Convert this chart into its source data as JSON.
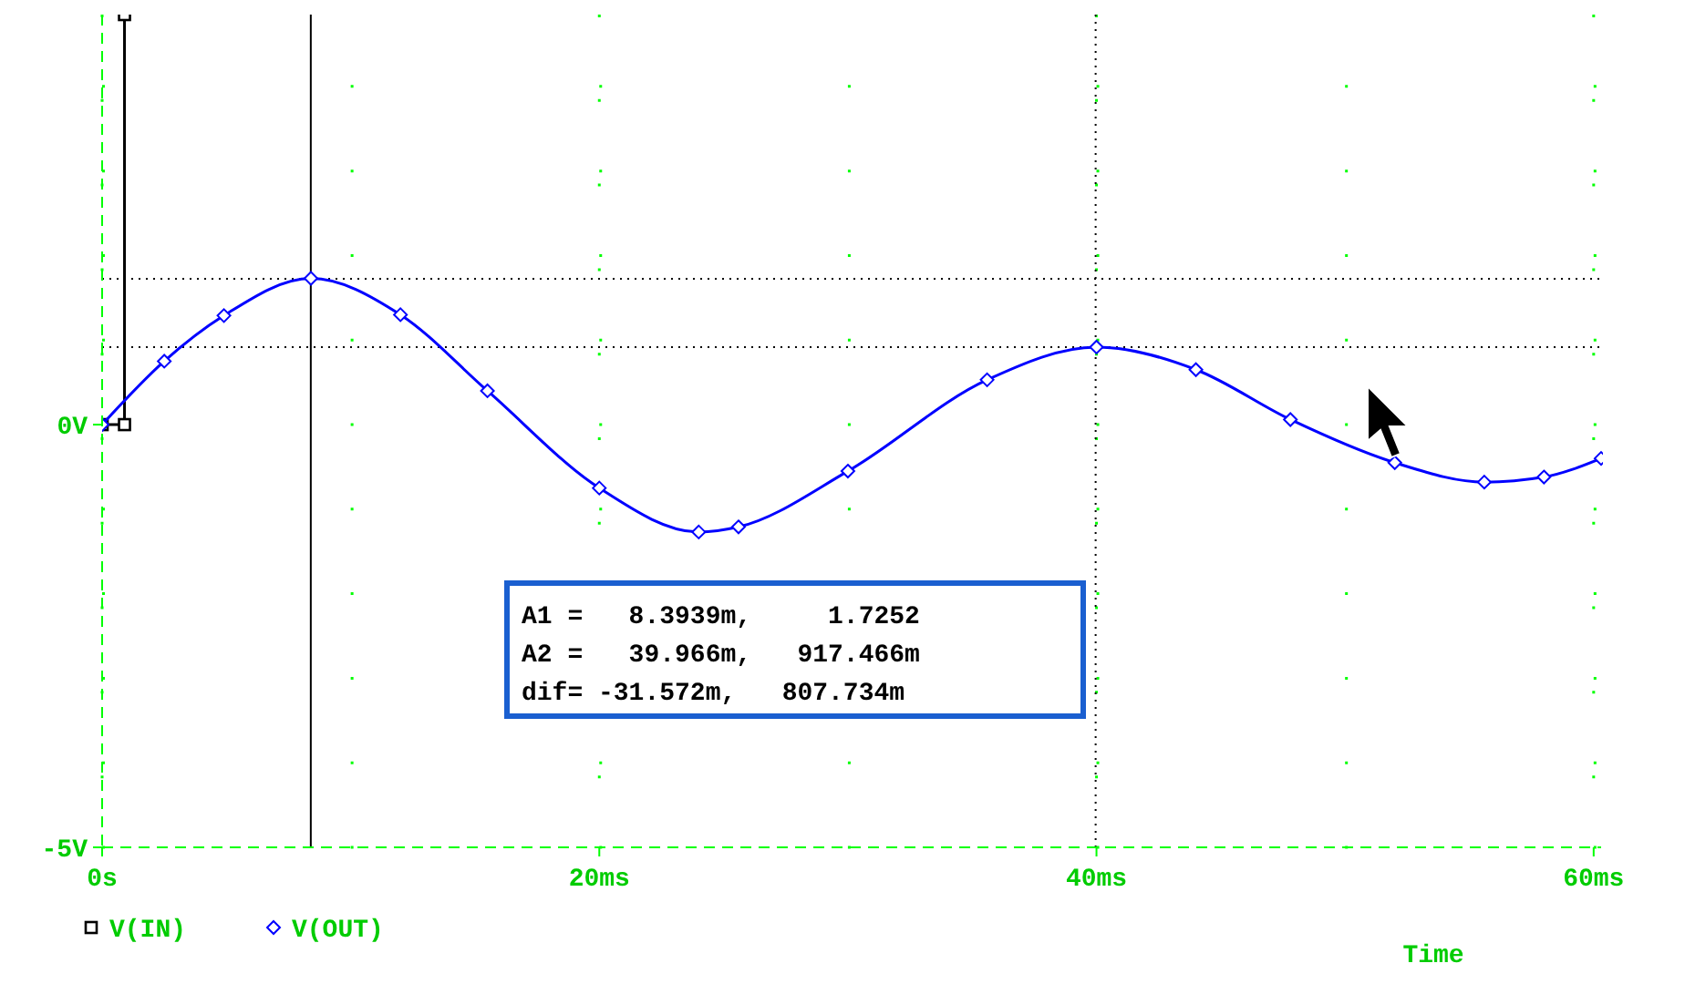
{
  "chart_data": {
    "type": "line",
    "xlabel": "Time",
    "xlim": [
      0,
      60.3
    ],
    "ylim": [
      -5,
      4.85
    ],
    "xticks": [
      {
        "value": 0,
        "label": "0s"
      },
      {
        "value": 20,
        "label": "20ms"
      },
      {
        "value": 40,
        "label": "40ms"
      },
      {
        "value": 60,
        "label": "60ms"
      }
    ],
    "yticks": [
      {
        "value": -5,
        "label": "-5V"
      },
      {
        "value": 0,
        "label": "0V"
      }
    ],
    "grid": true,
    "legend": "bottom left",
    "series": [
      {
        "name": "V(IN)",
        "color": "#000000",
        "marker": "square",
        "x": [
          0,
          0.9,
          0.9
        ],
        "values": [
          0,
          0,
          4.85
        ]
      },
      {
        "name": "V(OUT)",
        "color": "#0000ff",
        "marker": "diamond",
        "x": [
          0,
          2.5,
          4.9,
          8.4,
          12,
          15.5,
          20,
          24,
          25.6,
          30,
          35.6,
          40,
          44,
          47.8,
          52,
          55.6,
          58,
          60.3
        ],
        "values": [
          0,
          0.75,
          1.29,
          1.73,
          1.3,
          0.4,
          -0.75,
          -1.27,
          -1.21,
          -0.55,
          0.53,
          0.917,
          0.65,
          0.06,
          -0.45,
          -0.68,
          -0.62,
          -0.4
        ]
      }
    ],
    "ref_lines": [
      {
        "axis": "x",
        "value": 8.3939,
        "color": "#000000",
        "line_style": "solid"
      },
      {
        "axis": "x",
        "value": 39.966,
        "color": "#000000",
        "line_style": "dotted"
      },
      {
        "axis": "y",
        "value": 1.7252,
        "color": "#000000",
        "line_style": "dotted"
      },
      {
        "axis": "y",
        "value": 0.917466,
        "color": "#000000",
        "line_style": "dotted"
      }
    ],
    "annotations": [
      "A1 =   8.3939m,     1.7252",
      "A2 =   39.966m,   917.466m",
      "dif= -31.572m,   807.734m"
    ]
  }
}
